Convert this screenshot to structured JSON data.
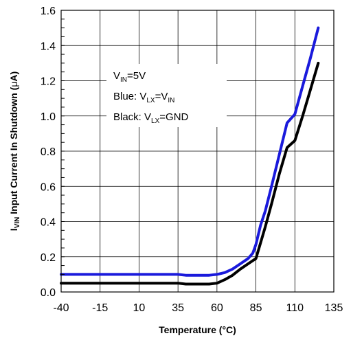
{
  "chart_data": {
    "type": "line",
    "xlabel": "Temperature (°C)",
    "ylabel_parts": {
      "main": "I",
      "sub": "VIN",
      "rest": " Input Current In Shutdown (",
      "mu": "μ",
      "unit": "A)"
    },
    "xlim": [
      -40,
      135
    ],
    "ylim": [
      0,
      1.6
    ],
    "x_ticks": [
      "-40",
      "-15",
      "10",
      "35",
      "60",
      "85",
      "110",
      "135"
    ],
    "y_ticks": [
      "0.0",
      "0.2",
      "0.4",
      "0.6",
      "0.8",
      "1.0",
      "1.2",
      "1.4",
      "1.6"
    ],
    "grid": true,
    "annotation": {
      "line1": {
        "a": "V",
        "a_sub": "IN",
        "b": "=5V"
      },
      "line2": {
        "a": "Blue:  V",
        "a_sub": "LX",
        "b": "=V",
        "b_sub": "IN"
      },
      "line3": {
        "a": "Black: V",
        "a_sub": "LX",
        "b": "=GND"
      }
    },
    "series": [
      {
        "color": "#1a1adc",
        "x": [
          -40,
          -15,
          10,
          35,
          40,
          45,
          55,
          60,
          65,
          70,
          75,
          80,
          83,
          85,
          88,
          91,
          95,
          100,
          105,
          110,
          115,
          120,
          125
        ],
        "y": [
          0.1,
          0.1,
          0.1,
          0.1,
          0.095,
          0.095,
          0.095,
          0.1,
          0.11,
          0.13,
          0.16,
          0.19,
          0.22,
          0.27,
          0.38,
          0.46,
          0.6,
          0.78,
          0.96,
          1.01,
          1.17,
          1.33,
          1.5
        ]
      },
      {
        "color": "#000000",
        "x": [
          -40,
          -15,
          10,
          35,
          40,
          45,
          55,
          60,
          65,
          70,
          75,
          80,
          85,
          88,
          91,
          95,
          100,
          105,
          110,
          115,
          120,
          125
        ],
        "y": [
          0.05,
          0.05,
          0.05,
          0.05,
          0.045,
          0.045,
          0.045,
          0.05,
          0.07,
          0.095,
          0.13,
          0.16,
          0.19,
          0.28,
          0.37,
          0.5,
          0.67,
          0.82,
          0.86,
          1.0,
          1.15,
          1.3
        ]
      }
    ]
  }
}
